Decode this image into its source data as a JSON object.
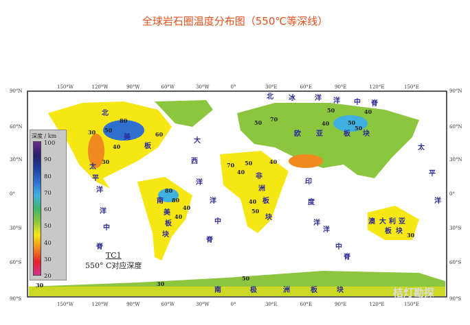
{
  "title": "全球岩石圈温度分布图（550℃等深线）",
  "lon_ticks": [
    "150°W",
    "120°W",
    "90°W",
    "60°W",
    "30°W",
    "0°",
    "30°E",
    "60°E",
    "90°E",
    "120°E",
    "150°E"
  ],
  "lat_ticks": [
    "90°N",
    "60°N",
    "30°N",
    "0°",
    "30°S",
    "60°S",
    "90°S"
  ],
  "legend": {
    "title": "深度 / km",
    "values": [
      "100",
      "90",
      "80",
      "70",
      "60",
      "50",
      "40",
      "30",
      "20"
    ],
    "colors": [
      "#6a2c91",
      "#2a1f6e",
      "#1a3fa0",
      "#2f6fd0",
      "#3fb0e0",
      "#3cb56a",
      "#8cc63f",
      "#f5e614",
      "#f08a1e",
      "#e8202a",
      "#d8308c"
    ]
  },
  "caption": {
    "line1": "TC1",
    "line2": "550° C对应深度"
  },
  "labels": {
    "north_america": [
      "北",
      "美",
      "板"
    ],
    "south_america": [
      "南",
      "美",
      "板",
      "块"
    ],
    "pacific": [
      "太",
      "平",
      "洋"
    ],
    "pacific_ridge": [
      "洋",
      "中",
      "脊"
    ],
    "atlantic": [
      "大",
      "西",
      "洋"
    ],
    "atlantic_ridge": [
      "洋",
      "中",
      "脊"
    ],
    "africa": [
      "非",
      "洲",
      "板",
      "块"
    ],
    "eurasia": [
      "欧",
      "亚",
      "板",
      "块"
    ],
    "arctic_ridge": [
      "北",
      "冰",
      "洋",
      "洋",
      "中",
      "脊"
    ],
    "indian": [
      "印",
      "度",
      "洋"
    ],
    "indian_ridge": [
      "洋",
      "中",
      "脊"
    ],
    "pacific_east": [
      "太",
      "平",
      "洋"
    ],
    "australia": [
      "澳",
      "大",
      "利",
      "亚",
      "板",
      "块"
    ],
    "antarctica": [
      "南",
      "极",
      "洲",
      "板",
      "块"
    ]
  },
  "contours": [
    "80",
    "30",
    "50",
    "40",
    "30",
    "80",
    "80",
    "40",
    "50",
    "70",
    "50",
    "40",
    "50",
    "40",
    "50",
    "70",
    "40",
    "40",
    "50",
    "40",
    "50",
    "60",
    "40",
    "30",
    "30",
    "30",
    "50"
  ],
  "watermark": "桔灯勘探"
}
